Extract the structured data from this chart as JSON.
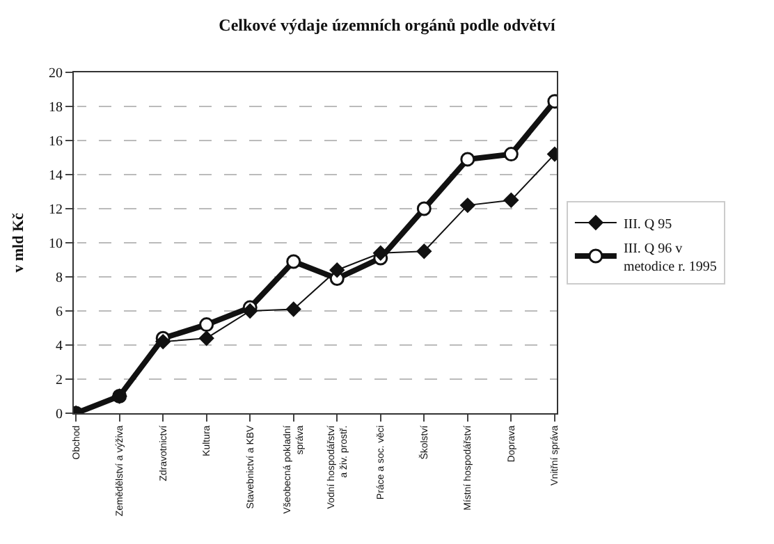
{
  "chart_data": {
    "type": "line",
    "title": "Celkové výdaje územních orgánů podle odvětví",
    "ylabel": "v mld Kč",
    "categories": [
      "Obchod",
      "Zemědělství a výživa",
      "Zdravotnictví",
      "Kultura",
      "Stavebnictví a KBV",
      "Všeobecná pokladní\nspráva",
      "Vodní hospodářství\na živ. prostř.",
      "Práce a soc. věci",
      "Školství",
      "Místní hospodářství",
      "Doprava",
      "Vnitřní správa"
    ],
    "series": [
      {
        "name": "III. Q 95",
        "color": "#111111",
        "marker": "diamond",
        "values": [
          0,
          1.0,
          4.2,
          4.4,
          6.0,
          6.1,
          8.4,
          9.4,
          9.5,
          12.2,
          12.5,
          15.2
        ]
      },
      {
        "name": "III. Q 96 v\nmetodice r. 1995",
        "color": "#111111",
        "marker": "circle",
        "values": [
          0,
          1.0,
          4.4,
          5.2,
          6.2,
          8.9,
          7.9,
          9.1,
          12.0,
          14.9,
          15.2,
          18.3
        ]
      }
    ],
    "ylim": [
      0,
      20
    ],
    "yticks": [
      0,
      2,
      4,
      6,
      8,
      10,
      12,
      14,
      16,
      18,
      20
    ],
    "grid": "y",
    "legend": "right"
  }
}
